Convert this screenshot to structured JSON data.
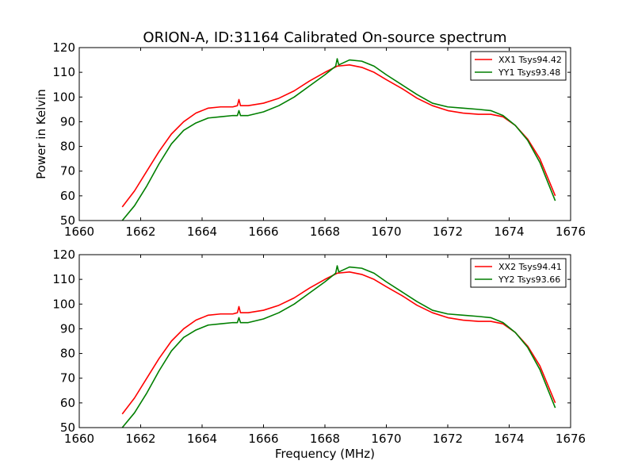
{
  "title": "ORION-A, ID:31164 Calibrated On-source spectrum",
  "colors": {
    "xx": "#ff0000",
    "yy": "#007f00"
  },
  "chart_data": [
    {
      "type": "line",
      "xlabel": "",
      "ylabel": "Power in Kelvin",
      "xlim": [
        1660,
        1676
      ],
      "ylim": [
        50,
        120
      ],
      "xticks": [
        1660,
        1662,
        1664,
        1666,
        1668,
        1670,
        1672,
        1674,
        1676
      ],
      "yticks": [
        50,
        60,
        70,
        80,
        90,
        100,
        110,
        120
      ],
      "legend": "top-right",
      "series": [
        {
          "name": "XX1 Tsys94.42",
          "color": "#ff0000",
          "x": [
            1661.4,
            1661.8,
            1662.2,
            1662.6,
            1663.0,
            1663.4,
            1663.8,
            1664.2,
            1664.6,
            1665.0,
            1665.15,
            1665.2,
            1665.25,
            1665.5,
            1666.0,
            1666.5,
            1667.0,
            1667.5,
            1668.0,
            1668.4,
            1668.8,
            1669.2,
            1669.6,
            1670.0,
            1670.5,
            1671.0,
            1671.5,
            1672.0,
            1672.5,
            1673.0,
            1673.4,
            1673.8,
            1674.2,
            1674.6,
            1675.0,
            1675.5
          ],
          "y": [
            55.5,
            62,
            70,
            78,
            85,
            90,
            93.5,
            95.5,
            96,
            96,
            96.5,
            99,
            96.5,
            96.5,
            97.5,
            99.5,
            102.5,
            106.5,
            110,
            112.5,
            113,
            112,
            110,
            107,
            103.5,
            99.5,
            96.5,
            94.5,
            93.5,
            93,
            93,
            92,
            88.5,
            83,
            75,
            60
          ]
        },
        {
          "name": "YY1 Tsys93.48",
          "color": "#007f00",
          "x": [
            1661.4,
            1661.8,
            1662.2,
            1662.6,
            1663.0,
            1663.4,
            1663.8,
            1664.2,
            1664.6,
            1665.0,
            1665.15,
            1665.2,
            1665.25,
            1665.5,
            1666.0,
            1666.5,
            1667.0,
            1667.5,
            1668.0,
            1668.35,
            1668.4,
            1668.45,
            1668.8,
            1669.2,
            1669.6,
            1670.0,
            1670.5,
            1671.0,
            1671.5,
            1672.0,
            1672.5,
            1673.0,
            1673.4,
            1673.8,
            1674.2,
            1674.6,
            1675.0,
            1675.5
          ],
          "y": [
            50,
            56,
            64,
            73,
            81,
            86.5,
            89.5,
            91.5,
            92,
            92.5,
            92.5,
            94.5,
            92.5,
            92.5,
            94,
            96.5,
            100,
            104.5,
            109,
            112.5,
            115.5,
            113,
            115,
            114.5,
            112.5,
            109,
            105,
            101,
            97.5,
            96,
            95.5,
            95,
            94.5,
            92.5,
            88.5,
            82.5,
            73.5,
            58
          ]
        }
      ]
    },
    {
      "type": "line",
      "xlabel": "Frequency (MHz)",
      "ylabel": "",
      "xlim": [
        1660,
        1676
      ],
      "ylim": [
        50,
        120
      ],
      "xticks": [
        1660,
        1662,
        1664,
        1666,
        1668,
        1670,
        1672,
        1674,
        1676
      ],
      "yticks": [
        50,
        60,
        70,
        80,
        90,
        100,
        110,
        120
      ],
      "legend": "top-right",
      "series": [
        {
          "name": "XX2 Tsys94.41",
          "color": "#ff0000",
          "x": [
            1661.4,
            1661.8,
            1662.2,
            1662.6,
            1663.0,
            1663.4,
            1663.8,
            1664.2,
            1664.6,
            1665.0,
            1665.15,
            1665.2,
            1665.25,
            1665.5,
            1666.0,
            1666.5,
            1667.0,
            1667.5,
            1668.0,
            1668.4,
            1668.8,
            1669.2,
            1669.6,
            1670.0,
            1670.5,
            1671.0,
            1671.5,
            1672.0,
            1672.5,
            1673.0,
            1673.4,
            1673.8,
            1674.2,
            1674.6,
            1675.0,
            1675.5
          ],
          "y": [
            55.5,
            62,
            70,
            78,
            85,
            90,
            93.5,
            95.5,
            96,
            96,
            96.5,
            99,
            96.5,
            96.5,
            97.5,
            99.5,
            102.5,
            106.5,
            110,
            112.5,
            113,
            112,
            110,
            107,
            103.5,
            99.5,
            96.5,
            94.5,
            93.5,
            93,
            93,
            92,
            88.5,
            83,
            75,
            60
          ]
        },
        {
          "name": "YY2 Tsys93.66",
          "color": "#007f00",
          "x": [
            1661.4,
            1661.8,
            1662.2,
            1662.6,
            1663.0,
            1663.4,
            1663.8,
            1664.2,
            1664.6,
            1665.0,
            1665.15,
            1665.2,
            1665.25,
            1665.5,
            1666.0,
            1666.5,
            1667.0,
            1667.5,
            1668.0,
            1668.35,
            1668.4,
            1668.45,
            1668.8,
            1669.2,
            1669.6,
            1670.0,
            1670.5,
            1671.0,
            1671.5,
            1672.0,
            1672.5,
            1673.0,
            1673.4,
            1673.8,
            1674.2,
            1674.6,
            1675.0,
            1675.5
          ],
          "y": [
            50,
            56,
            64,
            73,
            81,
            86.5,
            89.5,
            91.5,
            92,
            92.5,
            92.5,
            94.5,
            92.5,
            92.5,
            94,
            96.5,
            100,
            104.5,
            109,
            112.5,
            115.5,
            113,
            115,
            114.5,
            112.5,
            109,
            105,
            101,
            97.5,
            96,
            95.5,
            95,
            94.5,
            92.5,
            88.5,
            82.5,
            73.5,
            58
          ]
        }
      ]
    }
  ]
}
